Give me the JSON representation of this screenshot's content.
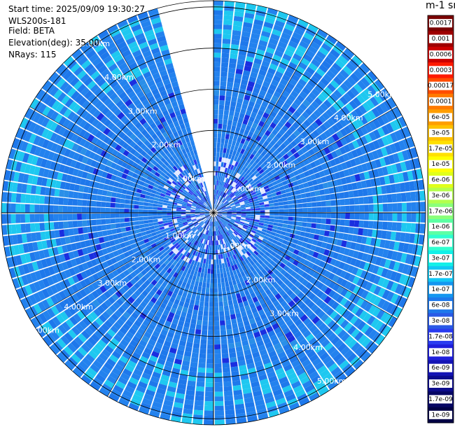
{
  "header": {
    "start_time": "Start time: 2025/09/09 19:30:27",
    "instrument": "WLS200s-181",
    "field": "Field: BETA",
    "elevation": "Elevation(deg): 35.00",
    "nrays": "NRays: 115"
  },
  "colorbar_unit": "m-1 sr-1",
  "chart_data": {
    "type": "heatmap",
    "subtype": "polar PPI scan",
    "field": "BETA",
    "range_ring_labels": [
      "1.00km",
      "2.00km",
      "3.00km",
      "4.00km",
      "5.00km"
    ],
    "range_rings_km": [
      1,
      2,
      3,
      4,
      5
    ],
    "max_range_km": 5.15,
    "rays": 115,
    "missing_sector_deg": [
      345,
      360
    ],
    "colorscale": "log",
    "colorbar": {
      "ticks": [
        "0.0017",
        "0.001",
        "0.0006",
        "0.0003",
        "0.00017",
        "0.0001",
        "6e-05",
        "3e-05",
        "1.7e-05",
        "1e-05",
        "6e-06",
        "3e-06",
        "1.7e-06",
        "1e-06",
        "6e-07",
        "3e-07",
        "1.7e-07",
        "1e-07",
        "6e-08",
        "3e-08",
        "1.7e-08",
        "1e-08",
        "6e-09",
        "3e-09",
        "1.7e-09",
        "1e-09"
      ],
      "colors": [
        "#7a0000",
        "#9e0000",
        "#cc0000",
        "#ff1a00",
        "#ff4d00",
        "#ff7a00",
        "#ff9e00",
        "#ffc200",
        "#ffe000",
        "#ffff00",
        "#e0ff1a",
        "#b4ff4d",
        "#8aff7a",
        "#5cffa4",
        "#30ffd0",
        "#12f0e8",
        "#12c8f5",
        "#1496f0",
        "#1e78eb",
        "#2a5ae6",
        "#2a3cf0",
        "#1f1fdc",
        "#1414b4",
        "#0c0c8c",
        "#060664",
        "#000046"
      ]
    },
    "dominant_values": "mostly 1e-07 to 6e-08 (blue), higher near far range (cyan 3e-07), sparse 1e-08 points"
  }
}
